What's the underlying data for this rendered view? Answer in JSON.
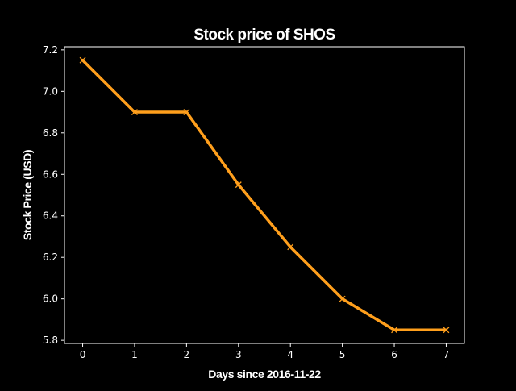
{
  "chart_data": {
    "type": "line",
    "title": "Stock price of SHOS",
    "xlabel": "Days since 2016-11-22",
    "ylabel": "Stock Price (USD)",
    "x": [
      0,
      1,
      2,
      3,
      4,
      5,
      6,
      7
    ],
    "series": [
      {
        "values": [
          7.15,
          6.9,
          6.9,
          6.55,
          6.25,
          6.0,
          5.85,
          5.85
        ],
        "color": "#ff9f1c",
        "marker": "x"
      }
    ],
    "xlim": [
      -0.35,
      7.35
    ],
    "ylim": [
      5.785,
      7.215
    ],
    "xticks": [
      0,
      1,
      2,
      3,
      4,
      5,
      6,
      7
    ],
    "yticks": [
      5.8,
      6.0,
      6.2,
      6.4,
      6.6,
      6.8,
      7.0,
      7.2
    ],
    "xtick_labels": [
      "0",
      "1",
      "2",
      "3",
      "4",
      "5",
      "6",
      "7"
    ],
    "ytick_labels": [
      "5.8",
      "6.0",
      "6.2",
      "6.4",
      "6.6",
      "6.8",
      "7.0",
      "7.2"
    ],
    "grid": false,
    "legend": false,
    "background": "#000000",
    "axis_color": "#ffffff"
  }
}
